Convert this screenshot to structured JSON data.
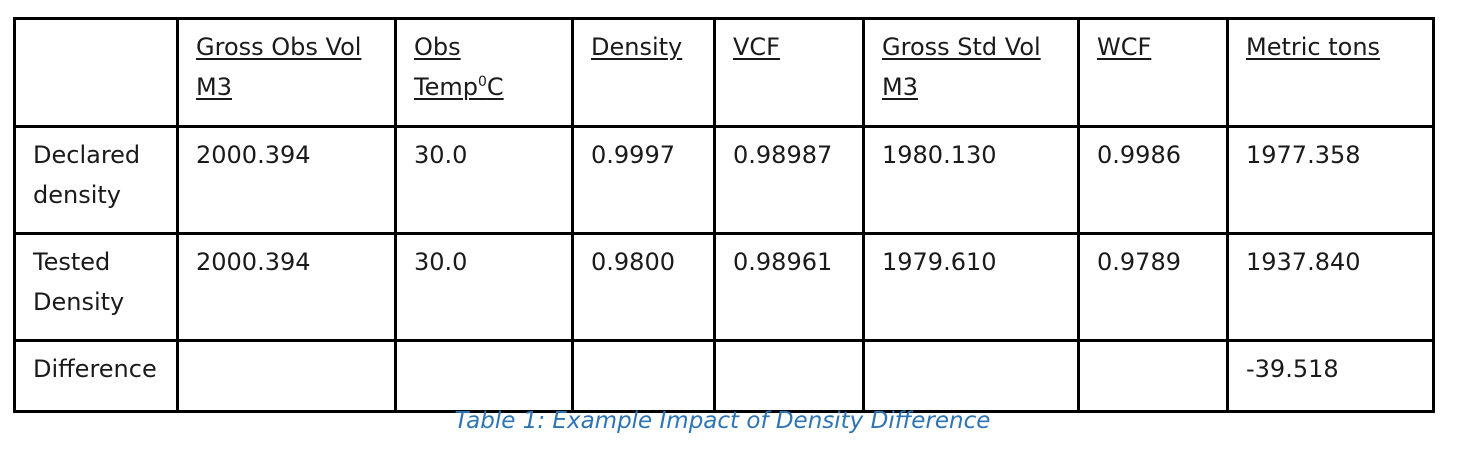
{
  "table": {
    "headers": [
      {
        "line1": "",
        "line2": "",
        "sup": "",
        "suffix": ""
      },
      {
        "line1": "Gross Obs Vol",
        "line2": "M3",
        "sup": "",
        "suffix": ""
      },
      {
        "line1": "Obs",
        "line2": "Temp",
        "sup": "0",
        "suffix": "C"
      },
      {
        "line1": "Density",
        "line2": "",
        "sup": "",
        "suffix": ""
      },
      {
        "line1": "VCF",
        "line2": "",
        "sup": "",
        "suffix": ""
      },
      {
        "line1": "Gross Std Vol",
        "line2": "M3",
        "sup": "",
        "suffix": ""
      },
      {
        "line1": "WCF",
        "line2": "",
        "sup": "",
        "suffix": ""
      },
      {
        "line1": "Metric tons",
        "line2": "",
        "sup": "",
        "suffix": ""
      }
    ],
    "rows": [
      {
        "label_line1": "Declared",
        "label_line2": "density",
        "cells": [
          "2000.394",
          "30.0",
          "0.9997",
          "0.98987",
          "1980.130",
          "0.9986",
          "1977.358"
        ]
      },
      {
        "label_line1": "Tested",
        "label_line2": "Density",
        "cells": [
          "2000.394",
          "30.0",
          "0.9800",
          "0.98961",
          "1979.610",
          "0.9789",
          "1937.840"
        ]
      },
      {
        "label_line1": "Difference",
        "label_line2": "",
        "cells": [
          "",
          "",
          "",
          "",
          "",
          "",
          "-39.518"
        ]
      }
    ]
  },
  "caption": "Table 1: Example Impact of Density Difference"
}
